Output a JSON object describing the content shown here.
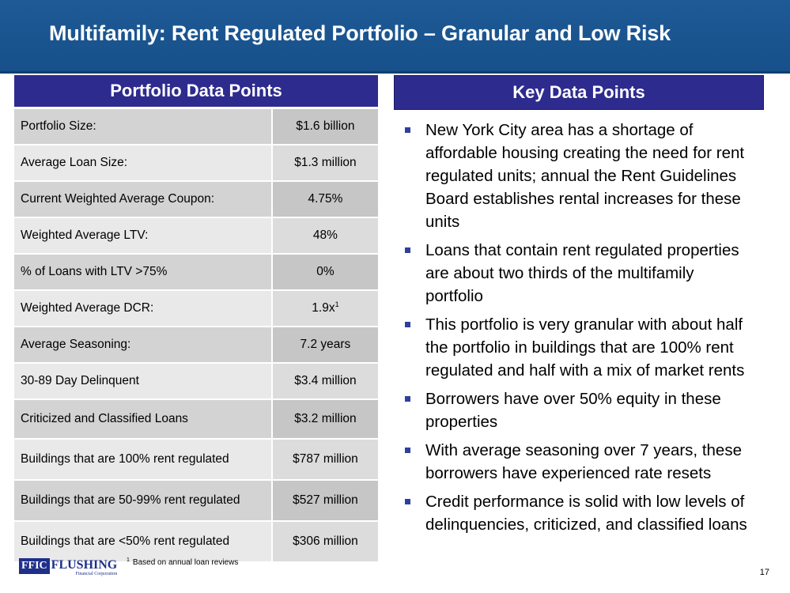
{
  "header": {
    "title": "Multifamily: Rent Regulated Portfolio – Granular and Low Risk"
  },
  "portfolio": {
    "heading": "Portfolio Data Points",
    "rows": [
      {
        "label": "Portfolio Size:",
        "value": "$1.6 billion"
      },
      {
        "label": "Average Loan Size:",
        "value": "$1.3 million"
      },
      {
        "label": "Current Weighted Average Coupon:",
        "value": "4.75%"
      },
      {
        "label": "Weighted Average LTV:",
        "value": "48%"
      },
      {
        "label": "% of Loans with LTV >75%",
        "value": "0%"
      },
      {
        "label": "Weighted Average DCR:",
        "value": "1.9x",
        "sup": "1"
      },
      {
        "label": "Average Seasoning:",
        "value": "7.2 years"
      },
      {
        "label": "30-89 Day Delinquent",
        "value": "$3.4 million"
      },
      {
        "label": "Criticized and Classified Loans",
        "value": "$3.2 million"
      },
      {
        "label": "Buildings that are 100% rent regulated",
        "value": "$787 million"
      },
      {
        "label": "Buildings that are 50-99% rent regulated",
        "value": "$527 million"
      },
      {
        "label": "Buildings that are <50% rent regulated",
        "value": "$306 million"
      }
    ]
  },
  "key_points": {
    "heading": "Key Data Points",
    "bullets": [
      "New York City area has a shortage of affordable housing creating the need for rent regulated units; annual the Rent Guidelines Board establishes rental increases for these units",
      "Loans that contain rent regulated properties are about two thirds of the multifamily portfolio",
      "This portfolio is very granular with about half the portfolio in buildings that are 100% rent regulated and half with a mix of market rents",
      "Borrowers have over 50% equity in these properties",
      "With average seasoning over 7 years, these borrowers have experienced rate resets",
      "Credit performance is solid with low levels of delinquencies, criticized, and classified loans"
    ]
  },
  "footer": {
    "logo_ffic": "FFIC",
    "logo_name": "FLUSHING",
    "logo_sub": "Financial Corporation",
    "footnote_mark": "1",
    "footnote": "Based on annual loan reviews",
    "page_number": "17"
  },
  "colors": {
    "title_bar": "#1e5a96",
    "section_header": "#2e2b8e",
    "row_dark": "#d3d3d3",
    "row_light": "#e9e9e9"
  }
}
